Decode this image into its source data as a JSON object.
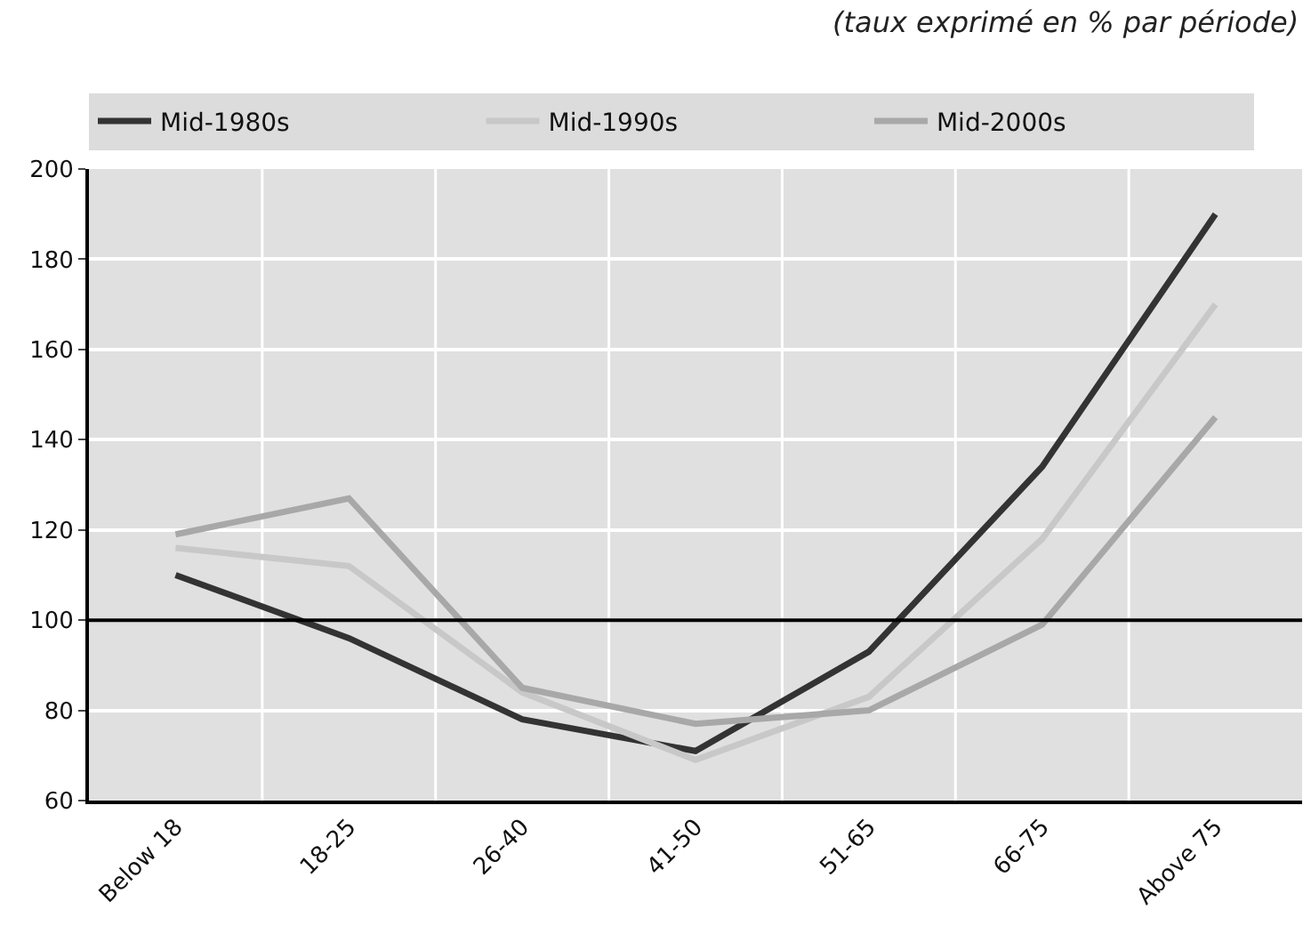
{
  "chart_data": {
    "type": "line",
    "categories": [
      "Below 18",
      "18-25",
      "26-40",
      "41-50",
      "51-65",
      "66-75",
      "Above 75"
    ],
    "series": [
      {
        "name": "Mid-1980s",
        "color": "#333333",
        "values": [
          110,
          96,
          78,
          71,
          93,
          134,
          190
        ]
      },
      {
        "name": "Mid-1990s",
        "color": "#c8c8c8",
        "values": [
          116,
          112,
          84,
          69,
          83,
          118,
          170
        ]
      },
      {
        "name": "Mid-2000s",
        "color": "#a8a8a8",
        "values": [
          119,
          127,
          85,
          77,
          80,
          99,
          145
        ]
      }
    ],
    "ylim": [
      60,
      200
    ],
    "yticks": [
      60,
      80,
      100,
      120,
      140,
      160,
      180,
      200
    ],
    "ref_lines": [
      {
        "axis": "y",
        "value": 100,
        "color": "#000000"
      }
    ],
    "annotations": [
      "(taux exprimé en % par période)"
    ],
    "grid": true,
    "legend": "top",
    "marker": "none",
    "line_style": "solid"
  }
}
